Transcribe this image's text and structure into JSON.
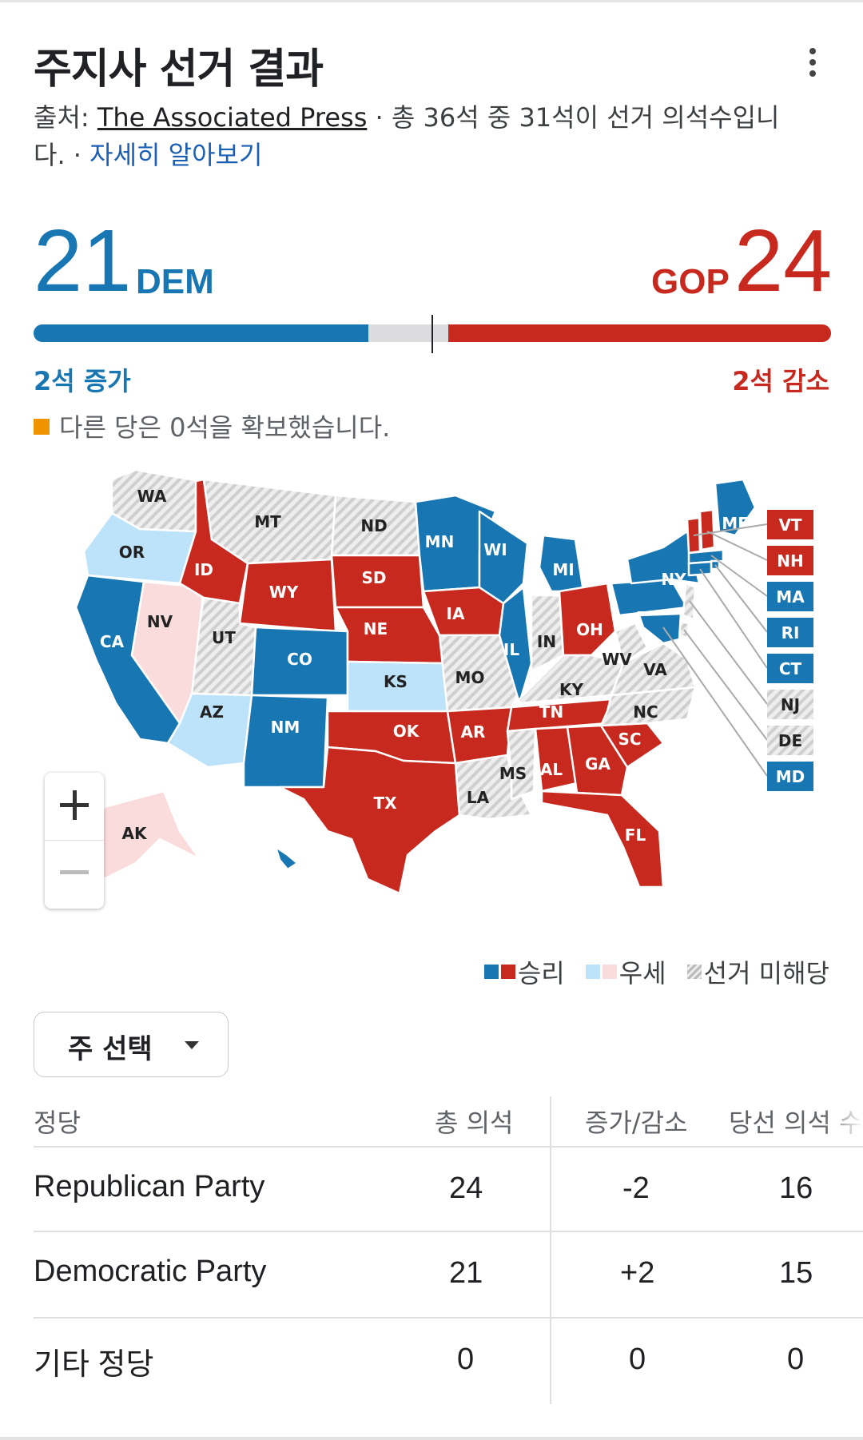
{
  "title": "주지사 선거 결과",
  "source": {
    "prefix": "출처: ",
    "name": "The Associated Press",
    "mid": " · 총 36석 중 31석이 선거 의석수입니다. · ",
    "more": "자세히 알아보기"
  },
  "score": {
    "dem_seats": "21",
    "dem_label": "DEM",
    "gop_seats": "24",
    "gop_label": "GOP",
    "dem_change": "2석 증가",
    "gop_change": "2석 감소",
    "other_note": "다른 당은 0석을 확보했습니다.",
    "total": 50,
    "dem_value": 21,
    "gop_value": 24
  },
  "colors": {
    "dem": "#1877b2",
    "dem_lean": "#bde3fa",
    "gop": "#c8291f",
    "gop_lean": "#fadcdc",
    "other": "#f09300",
    "no_race": "#e0e0e0"
  },
  "map": {
    "states": {
      "WA": "none",
      "OR": "dem_lean",
      "CA": "dem",
      "NV": "gop_lean",
      "ID": "gop",
      "MT": "none",
      "WY": "gop",
      "UT": "none",
      "AZ": "dem_lean",
      "CO": "dem",
      "NM": "dem",
      "ND": "none",
      "SD": "gop",
      "NE": "gop",
      "KS": "dem_lean",
      "OK": "gop",
      "TX": "gop",
      "MN": "dem",
      "IA": "gop",
      "MO": "none",
      "AR": "gop",
      "LA": "none",
      "WI": "dem",
      "IL": "dem",
      "MI": "dem",
      "IN": "none",
      "OH": "gop",
      "KY": "none",
      "TN": "gop",
      "MS": "none",
      "AL": "gop",
      "GA": "gop",
      "FL": "gop",
      "SC": "gop",
      "NC": "none",
      "VA": "none",
      "WV": "none",
      "PA": "dem",
      "NY": "dem",
      "ME": "dem",
      "AK": "gop_lean",
      "HI": "dem"
    },
    "northeast": [
      {
        "code": "VT",
        "status": "gop"
      },
      {
        "code": "NH",
        "status": "gop"
      },
      {
        "code": "MA",
        "status": "dem"
      },
      {
        "code": "RI",
        "status": "dem"
      },
      {
        "code": "CT",
        "status": "dem"
      },
      {
        "code": "NJ",
        "status": "none"
      },
      {
        "code": "DE",
        "status": "none"
      },
      {
        "code": "MD",
        "status": "dem"
      }
    ]
  },
  "legend": {
    "win": "승리",
    "lean": "우세",
    "no_race": "선거 미해당"
  },
  "select_label": "주 선택",
  "table": {
    "headers": [
      "정당",
      "총 의석",
      "증가/감소",
      "당선 의석 수"
    ],
    "rows": [
      [
        "Republican Party",
        "24",
        "-2",
        "16"
      ],
      [
        "Democratic Party",
        "21",
        "+2",
        "15"
      ],
      [
        "기타 정당",
        "0",
        "0",
        "0"
      ]
    ]
  }
}
